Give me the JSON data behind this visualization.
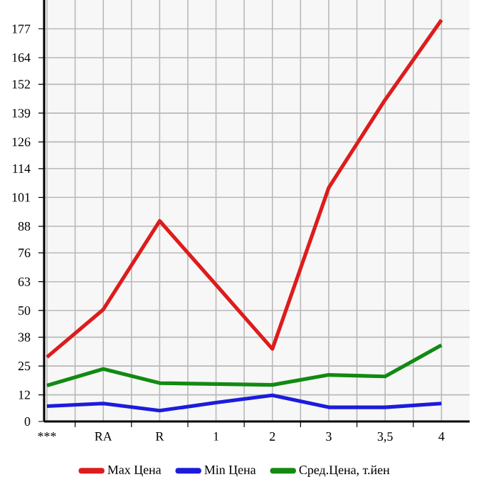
{
  "chart_data": {
    "type": "line",
    "categories": [
      "***",
      "RA",
      "R",
      "1",
      "2",
      "3",
      "3,5",
      "4"
    ],
    "series": [
      {
        "name": "Max Цена",
        "color": "#dd1c1c",
        "values": [
          29,
          50.5,
          90.4,
          61.6,
          32.7,
          105.4,
          145,
          181
        ]
      },
      {
        "name": "Min Цена",
        "color": "#1c1cdd",
        "values": [
          6.9,
          8.1,
          4.9,
          8.5,
          11.8,
          6.4,
          6.4,
          8.1
        ]
      },
      {
        "name": "Сред.Цена, т.йен",
        "color": "#128a12",
        "values": [
          16.2,
          23.7,
          17.3,
          16.9,
          16.5,
          21,
          20.3,
          34.4
        ]
      }
    ],
    "ylim": [
      0,
      190
    ],
    "yticks": [
      0,
      12,
      25,
      38,
      50,
      63,
      76,
      88,
      101,
      114,
      126,
      139,
      152,
      164,
      177
    ],
    "grid": true,
    "legend": "bottom",
    "marker": "none",
    "line_style": "solid"
  }
}
